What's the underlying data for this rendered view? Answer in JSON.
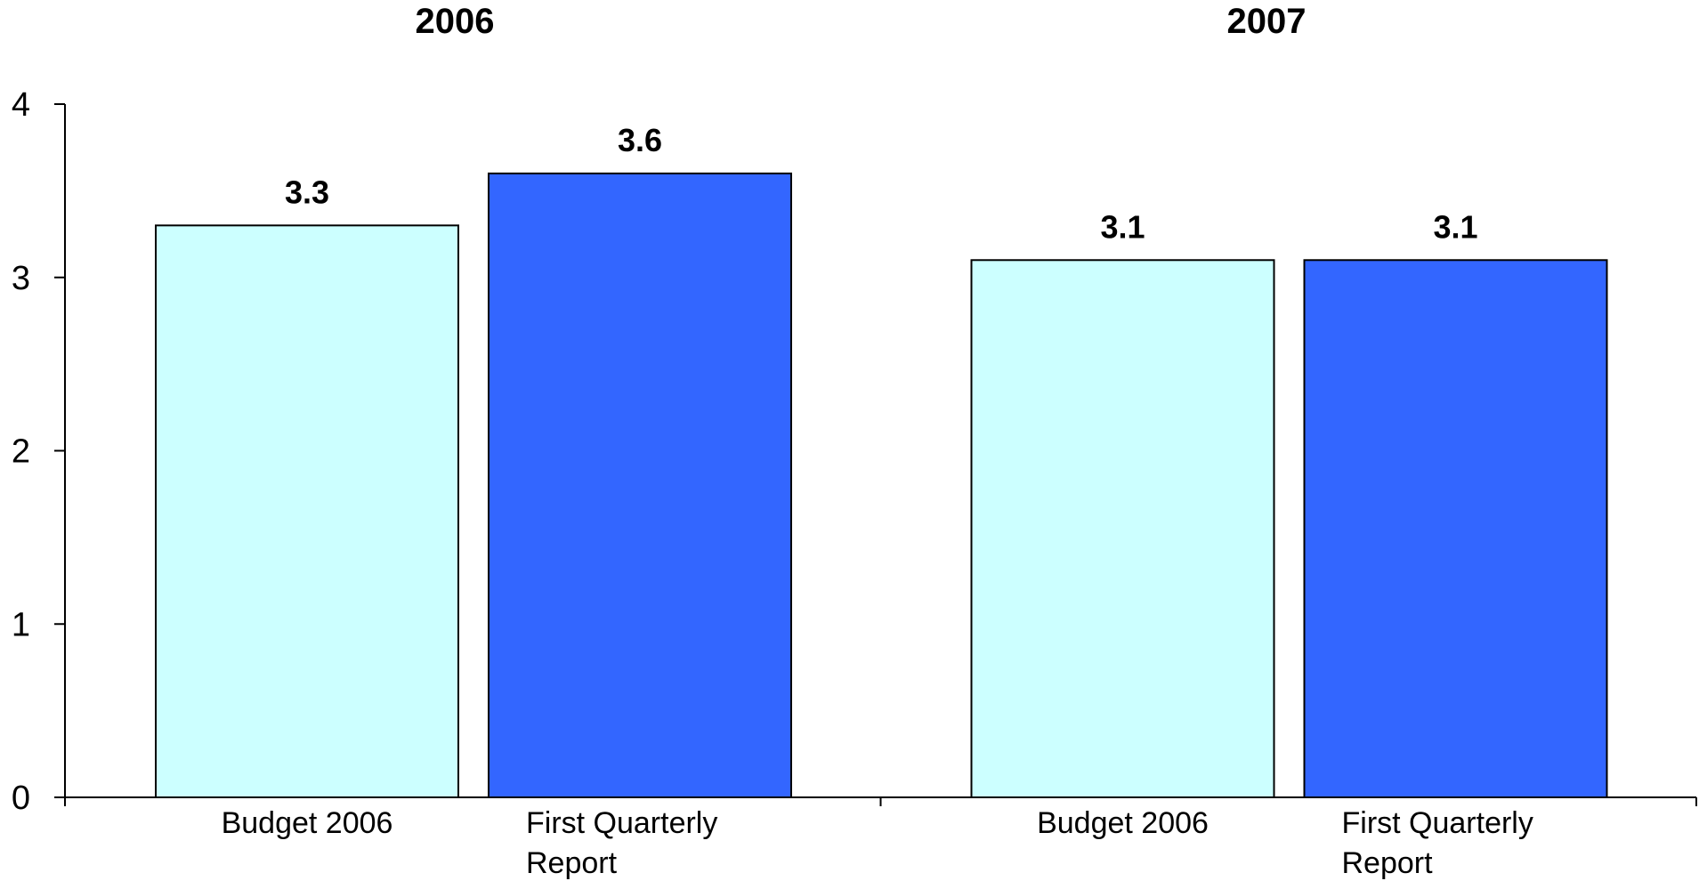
{
  "chart_data": {
    "type": "bar",
    "groups": [
      {
        "title": "2006",
        "bars": [
          {
            "category": [
              "Budget 2006"
            ],
            "value": 3.3,
            "label": "3.3",
            "color": "#CCFFFF"
          },
          {
            "category": [
              "First Quarterly",
              "Report"
            ],
            "value": 3.6,
            "label": "3.6",
            "color": "#3366FF"
          }
        ]
      },
      {
        "title": "2007",
        "bars": [
          {
            "category": [
              "Budget 2006"
            ],
            "value": 3.1,
            "label": "3.1",
            "color": "#CCFFFF"
          },
          {
            "category": [
              "First Quarterly",
              "Report"
            ],
            "value": 3.1,
            "label": "3.1",
            "color": "#3366FF"
          }
        ]
      }
    ],
    "yticks": [
      "0",
      "1",
      "2",
      "3",
      "4"
    ],
    "ylim": [
      0,
      4
    ],
    "grid": false,
    "legend": "none"
  }
}
